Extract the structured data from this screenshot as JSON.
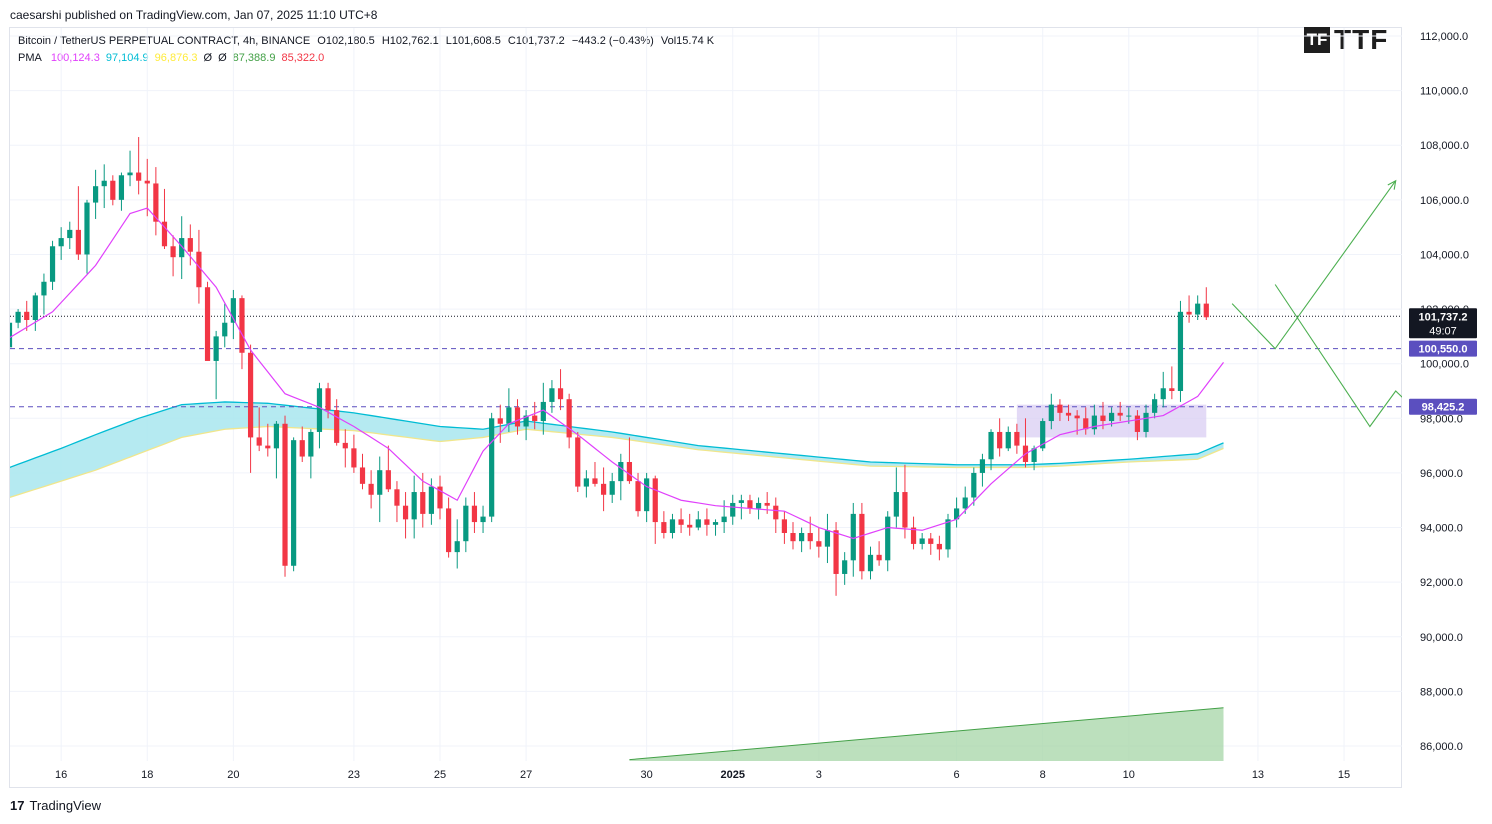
{
  "header": {
    "published": "caesarshi published on TradingView.com, Jan 07, 2025 11:10 UTC+8"
  },
  "legend": {
    "symbol": "Bitcoin / TetherUS PERPETUAL CONTRACT, 4h, BINANCE",
    "open": "O102,180.5",
    "high": "H102,762.1",
    "low": "L101,608.5",
    "close": "C101,737.2",
    "change": "−443.2 (−0.43%)",
    "volume": "Vol15.74 K",
    "pma_label": "PMA",
    "pma_values": [
      {
        "text": "100,124.3",
        "color": "#e040fb"
      },
      {
        "text": "97,104.9",
        "color": "#00bcd4"
      },
      {
        "text": "96,876.3",
        "color": "#ffeb3b"
      },
      {
        "text": "Ø",
        "color": "#131722"
      },
      {
        "text": "Ø",
        "color": "#131722"
      },
      {
        "text": "87,388.9",
        "color": "#43a047"
      },
      {
        "text": "85,322.0",
        "color": "#f23645"
      }
    ]
  },
  "logo": {
    "box": "TF",
    "text": "TTF"
  },
  "footer": {
    "brand": "TradingView",
    "mark": "17"
  },
  "price_labels": {
    "last": "101,737.2",
    "countdown": "49:07",
    "level1": "100,550.0",
    "level2": "98,425.2"
  },
  "colors": {
    "up": "#089981",
    "down": "#f23645",
    "pma": "#e040fb",
    "cloud_fill": "#a8e6ef",
    "cloud_upper": "#00bcd4",
    "cloud_lower": "#f0e68c",
    "projection": "#4caf50",
    "zone": "#d9cdf3",
    "level_line": "#5b4fbf",
    "volume_area": "#a5d6a7"
  },
  "chart_data": {
    "type": "candlestick",
    "title": "Bitcoin / TetherUS PERPETUAL CONTRACT, 4h, BINANCE",
    "yaxis_ticks": [
      "112,000.0",
      "110,000.0",
      "108,000.0",
      "106,000.0",
      "104,000.0",
      "102,000.0",
      "100,000.0",
      "98,000.0",
      "96,000.0",
      "94,000.0",
      "92,000.0",
      "90,000.0",
      "88,000.0",
      "86,000.0"
    ],
    "yaxis_tick_values": [
      112000,
      110000,
      108000,
      106000,
      104000,
      102000,
      100000,
      98000,
      96000,
      94000,
      92000,
      90000,
      88000,
      86000
    ],
    "ylim": [
      85500,
      112500
    ],
    "xaxis_ticks": [
      "16",
      "18",
      "20",
      "23",
      "25",
      "27",
      "30",
      "2025",
      "3",
      "6",
      "8",
      "10",
      "13",
      "15"
    ],
    "xaxis_tick_candles": [
      6,
      16,
      26,
      40,
      50,
      60,
      74,
      84,
      94,
      110,
      120,
      130,
      145,
      155
    ],
    "candles": [
      [
        100600,
        101700,
        100500,
        101500
      ],
      [
        101500,
        102000,
        101300,
        101900
      ],
      [
        101900,
        102300,
        101200,
        101600
      ],
      [
        101600,
        102600,
        101200,
        102500
      ],
      [
        102500,
        103300,
        101800,
        103000
      ],
      [
        103000,
        104500,
        102700,
        104300
      ],
      [
        104300,
        105000,
        103800,
        104600
      ],
      [
        104600,
        105200,
        104200,
        104900
      ],
      [
        104900,
        106500,
        103800,
        104000
      ],
      [
        104000,
        106000,
        103300,
        105900
      ],
      [
        105900,
        107100,
        105300,
        106500
      ],
      [
        106500,
        107300,
        105700,
        106700
      ],
      [
        106700,
        106900,
        105800,
        106000
      ],
      [
        106000,
        107000,
        105600,
        106900
      ],
      [
        106900,
        107800,
        106500,
        107000
      ],
      [
        107000,
        108300,
        106200,
        106700
      ],
      [
        106700,
        107500,
        105400,
        106600
      ],
      [
        106600,
        107200,
        104700,
        105200
      ],
      [
        105200,
        106400,
        104200,
        104300
      ],
      [
        104300,
        104700,
        103200,
        103900
      ],
      [
        103900,
        105400,
        103100,
        104600
      ],
      [
        104600,
        105100,
        103600,
        104100
      ],
      [
        104100,
        104900,
        102200,
        102800
      ],
      [
        102800,
        103000,
        100300,
        100100
      ],
      [
        100100,
        101200,
        98700,
        101000
      ],
      [
        101000,
        102200,
        100600,
        101500
      ],
      [
        101500,
        102700,
        100900,
        102400
      ],
      [
        102400,
        102500,
        99800,
        100400
      ],
      [
        100400,
        100700,
        96000,
        97300
      ],
      [
        97300,
        98400,
        96800,
        97000
      ],
      [
        97000,
        97800,
        96600,
        96900
      ],
      [
        96900,
        97900,
        95800,
        97800
      ],
      [
        97800,
        98100,
        92200,
        92600
      ],
      [
        92600,
        97300,
        92400,
        97200
      ],
      [
        97200,
        97700,
        96400,
        96600
      ],
      [
        96600,
        97600,
        95800,
        97500
      ],
      [
        97500,
        99300,
        96900,
        99100
      ],
      [
        99100,
        99300,
        98000,
        98300
      ],
      [
        98300,
        98700,
        97000,
        97100
      ],
      [
        97100,
        97600,
        96200,
        96900
      ],
      [
        96900,
        97400,
        96000,
        96200
      ],
      [
        96200,
        96700,
        95400,
        95600
      ],
      [
        95600,
        96100,
        94700,
        95200
      ],
      [
        95200,
        96600,
        94200,
        96100
      ],
      [
        96100,
        97000,
        95300,
        95400
      ],
      [
        95400,
        95700,
        94200,
        94800
      ],
      [
        94800,
        95300,
        93600,
        94300
      ],
      [
        94300,
        95900,
        93600,
        95300
      ],
      [
        95300,
        96000,
        94000,
        94500
      ],
      [
        94500,
        95800,
        94100,
        95500
      ],
      [
        95500,
        95900,
        94300,
        94700
      ],
      [
        94700,
        95100,
        92900,
        93100
      ],
      [
        93100,
        94300,
        92500,
        93500
      ],
      [
        93500,
        95100,
        93100,
        94800
      ],
      [
        94800,
        95300,
        93800,
        94200
      ],
      [
        94200,
        94800,
        93800,
        94400
      ],
      [
        94400,
        98200,
        94200,
        98000
      ],
      [
        98000,
        98500,
        97100,
        97800
      ],
      [
        97800,
        99100,
        97500,
        98400
      ],
      [
        98400,
        98700,
        97400,
        97700
      ],
      [
        97700,
        98300,
        97200,
        98100
      ],
      [
        98100,
        98600,
        97600,
        97900
      ],
      [
        97900,
        99300,
        97400,
        98600
      ],
      [
        98600,
        99400,
        98200,
        99100
      ],
      [
        99100,
        99800,
        98300,
        98700
      ],
      [
        98700,
        98900,
        96900,
        97300
      ],
      [
        97300,
        97500,
        95300,
        95500
      ],
      [
        95500,
        96100,
        95100,
        95800
      ],
      [
        95800,
        96400,
        95500,
        95600
      ],
      [
        95600,
        96200,
        94600,
        95200
      ],
      [
        95200,
        96000,
        94900,
        95700
      ],
      [
        95700,
        96700,
        95000,
        96400
      ],
      [
        96400,
        97300,
        95600,
        95700
      ],
      [
        95700,
        96000,
        94400,
        94600
      ],
      [
        94600,
        96000,
        94200,
        95800
      ],
      [
        95800,
        95900,
        93400,
        94200
      ],
      [
        94200,
        94600,
        93600,
        93800
      ],
      [
        93800,
        94500,
        93600,
        94300
      ],
      [
        94300,
        94700,
        93800,
        94100
      ],
      [
        94100,
        94500,
        93700,
        94000
      ],
      [
        94000,
        94600,
        93900,
        94300
      ],
      [
        94300,
        94700,
        93700,
        94100
      ],
      [
        94100,
        94300,
        93700,
        94200
      ],
      [
        94200,
        95000,
        93800,
        94400
      ],
      [
        94400,
        95200,
        94100,
        94900
      ],
      [
        94900,
        95200,
        94300,
        95000
      ],
      [
        95000,
        95200,
        94500,
        94700
      ],
      [
        94700,
        95100,
        94300,
        94900
      ],
      [
        94900,
        95300,
        94500,
        94800
      ],
      [
        94800,
        95100,
        93800,
        94300
      ],
      [
        94300,
        94600,
        93400,
        93800
      ],
      [
        93800,
        94200,
        93200,
        93500
      ],
      [
        93500,
        94000,
        93100,
        93800
      ],
      [
        93800,
        94400,
        93200,
        93500
      ],
      [
        93500,
        94000,
        92900,
        93300
      ],
      [
        93300,
        94500,
        92700,
        93900
      ],
      [
        93900,
        94200,
        91500,
        92300
      ],
      [
        92300,
        93100,
        91900,
        92800
      ],
      [
        92800,
        94900,
        92200,
        94500
      ],
      [
        94500,
        94900,
        92100,
        92400
      ],
      [
        92400,
        93300,
        92100,
        93000
      ],
      [
        93000,
        93500,
        92600,
        92800
      ],
      [
        92800,
        94600,
        92400,
        94400
      ],
      [
        94400,
        96200,
        94000,
        95300
      ],
      [
        95300,
        96300,
        93600,
        94000
      ],
      [
        94000,
        94400,
        93200,
        93400
      ],
      [
        93400,
        93800,
        93200,
        93600
      ],
      [
        93600,
        93800,
        93000,
        93400
      ],
      [
        93400,
        93700,
        92800,
        93200
      ],
      [
        93200,
        94500,
        92900,
        94300
      ],
      [
        94300,
        95100,
        94000,
        94700
      ],
      [
        94700,
        95500,
        94500,
        95100
      ],
      [
        95100,
        96200,
        94800,
        96000
      ],
      [
        96000,
        96700,
        95500,
        96500
      ],
      [
        96500,
        97600,
        96100,
        97500
      ],
      [
        97500,
        98000,
        96600,
        96900
      ],
      [
        96900,
        97700,
        96800,
        97500
      ],
      [
        97500,
        97800,
        96700,
        97000
      ],
      [
        97000,
        98000,
        96200,
        96400
      ],
      [
        96400,
        97000,
        96100,
        96900
      ],
      [
        96900,
        98000,
        96800,
        97900
      ],
      [
        97900,
        98900,
        97600,
        98500
      ],
      [
        98500,
        98700,
        97900,
        98200
      ],
      [
        98200,
        98500,
        97900,
        98100
      ],
      [
        98100,
        98300,
        97400,
        98000
      ],
      [
        98000,
        98400,
        97400,
        97600
      ],
      [
        97600,
        98500,
        97400,
        98100
      ],
      [
        98100,
        98600,
        97600,
        97900
      ],
      [
        97900,
        98400,
        97700,
        98200
      ],
      [
        98200,
        98600,
        97900,
        98100
      ],
      [
        98100,
        98400,
        97800,
        98100
      ],
      [
        98100,
        98300,
        97200,
        97500
      ],
      [
        97500,
        98500,
        97300,
        98200
      ],
      [
        98200,
        98900,
        98000,
        98700
      ],
      [
        98700,
        99700,
        98400,
        99100
      ],
      [
        99100,
        99900,
        98700,
        99000
      ],
      [
        99000,
        102300,
        98600,
        101900
      ],
      [
        101900,
        102500,
        101500,
        101800
      ],
      [
        101800,
        102500,
        101600,
        102200
      ],
      [
        102200,
        102800,
        101600,
        101700
      ]
    ],
    "series": [
      {
        "name": "PMA",
        "values": [
          [
            0,
            100950
          ],
          [
            5,
            101900
          ],
          [
            10,
            103600
          ],
          [
            14,
            105500
          ],
          [
            16,
            105700
          ],
          [
            20,
            104300
          ],
          [
            24,
            102800
          ],
          [
            28,
            100500
          ],
          [
            32,
            98900
          ],
          [
            36,
            98400
          ],
          [
            40,
            97700
          ],
          [
            44,
            96900
          ],
          [
            48,
            95700
          ],
          [
            52,
            95000
          ],
          [
            55,
            96800
          ],
          [
            58,
            97800
          ],
          [
            62,
            98300
          ],
          [
            66,
            97400
          ],
          [
            70,
            96400
          ],
          [
            74,
            95500
          ],
          [
            78,
            95000
          ],
          [
            82,
            94800
          ],
          [
            86,
            94700
          ],
          [
            90,
            94600
          ],
          [
            94,
            94000
          ],
          [
            98,
            93600
          ],
          [
            102,
            94000
          ],
          [
            106,
            93900
          ],
          [
            110,
            94300
          ],
          [
            114,
            95600
          ],
          [
            118,
            96700
          ],
          [
            122,
            97400
          ],
          [
            126,
            97700
          ],
          [
            130,
            97900
          ],
          [
            134,
            98100
          ],
          [
            138,
            98800
          ],
          [
            141,
            100050
          ]
        ]
      },
      {
        "name": "PMA cloud upper",
        "values": [
          [
            0,
            96200
          ],
          [
            6,
            96900
          ],
          [
            10,
            97400
          ],
          [
            15,
            98000
          ],
          [
            20,
            98500
          ],
          [
            25,
            98600
          ],
          [
            30,
            98550
          ],
          [
            40,
            98200
          ],
          [
            50,
            97700
          ],
          [
            55,
            97600
          ],
          [
            60,
            97900
          ],
          [
            70,
            97500
          ],
          [
            80,
            97000
          ],
          [
            90,
            96700
          ],
          [
            100,
            96400
          ],
          [
            110,
            96300
          ],
          [
            118,
            96300
          ],
          [
            122,
            96350
          ],
          [
            130,
            96500
          ],
          [
            138,
            96700
          ],
          [
            141,
            97100
          ]
        ]
      },
      {
        "name": "PMA cloud lower",
        "values": [
          [
            0,
            95100
          ],
          [
            6,
            95700
          ],
          [
            10,
            96100
          ],
          [
            15,
            96700
          ],
          [
            20,
            97300
          ],
          [
            25,
            97600
          ],
          [
            30,
            97700
          ],
          [
            40,
            97550
          ],
          [
            50,
            97150
          ],
          [
            55,
            97300
          ],
          [
            60,
            97600
          ],
          [
            70,
            97300
          ],
          [
            80,
            96850
          ],
          [
            90,
            96550
          ],
          [
            100,
            96250
          ],
          [
            110,
            96200
          ],
          [
            118,
            96200
          ],
          [
            122,
            96250
          ],
          [
            130,
            96400
          ],
          [
            138,
            96500
          ],
          [
            141,
            96900
          ]
        ]
      }
    ],
    "levels": [
      {
        "value": 101737.2,
        "style": "dotted",
        "label": "101,737.2"
      },
      {
        "value": 100550.0,
        "style": "dashed",
        "label": "100,550.0"
      },
      {
        "value": 98425.2,
        "style": "dashed",
        "label": "98,425.2"
      }
    ],
    "zone": {
      "from_candle": 117,
      "to_candle": 139,
      "top": 98500,
      "bottom": 97300
    },
    "projections": [
      {
        "points": [
          [
            142,
            102200
          ],
          [
            147,
            100550
          ],
          [
            161,
            106700
          ]
        ]
      },
      {
        "points": [
          [
            147,
            102900
          ],
          [
            158,
            97700
          ],
          [
            161,
            99000
          ],
          [
            163,
            98400
          ],
          [
            185,
            106900
          ]
        ]
      }
    ],
    "volume_area": {
      "from_candle": 72,
      "to_candle": 141,
      "from_value": 85500,
      "to_value": 87400
    }
  }
}
